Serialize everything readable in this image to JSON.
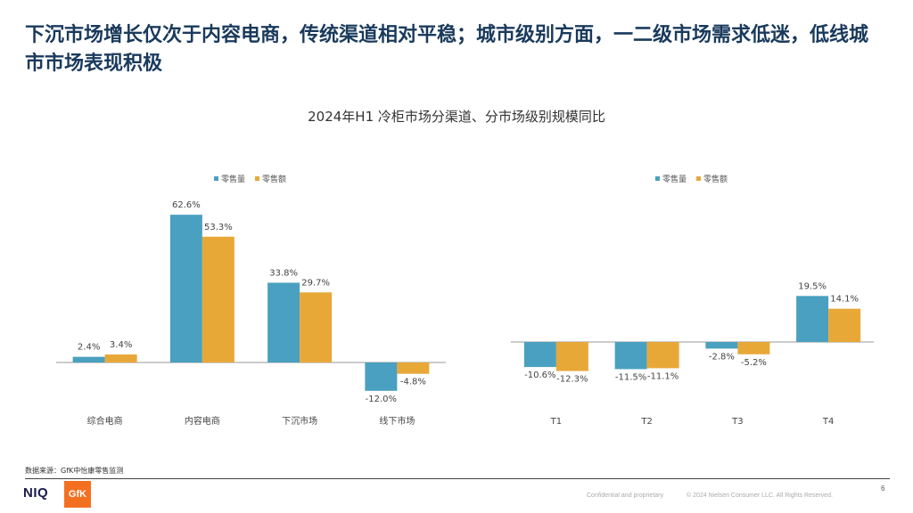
{
  "headline": "下沉市场增长仅次于内容电商，传统渠道相对平稳；城市级别方面，一二级市场需求低迷，低线城市市场表现积极",
  "chart_title": "2024年H1 冷柜市场分渠道、分市场级别规模同比",
  "colors": {
    "volume": "#4aa0c0",
    "value": "#e8a838",
    "axis": "#999999"
  },
  "chart_data": [
    {
      "type": "bar",
      "categories": [
        "综合电商",
        "内容电商",
        "下沉市场",
        "线下市场"
      ],
      "series": [
        {
          "name": "零售量",
          "values": [
            2.4,
            62.6,
            33.8,
            -12.0
          ],
          "labels": [
            "2.4%",
            "62.6%",
            "33.8%",
            "-12.0%"
          ]
        },
        {
          "name": "零售额",
          "values": [
            3.4,
            53.3,
            29.7,
            -4.8
          ],
          "labels": [
            "3.4%",
            "53.3%",
            "29.7%",
            "-4.8%"
          ]
        }
      ],
      "unit": "%",
      "legend": "top-center",
      "ylim": [
        -15,
        65
      ],
      "grid": false
    },
    {
      "type": "bar",
      "categories": [
        "T1",
        "T2",
        "T3",
        "T4"
      ],
      "series": [
        {
          "name": "零售量",
          "values": [
            -10.6,
            -11.5,
            -2.8,
            19.5
          ],
          "labels": [
            "-10.6%",
            "-11.5%",
            "-2.8%",
            "19.5%"
          ]
        },
        {
          "name": "零售额",
          "values": [
            -12.3,
            -11.1,
            -5.2,
            14.1
          ],
          "labels": [
            "-12.3%",
            "-11.1%",
            "-5.2%",
            "14.1%"
          ]
        }
      ],
      "unit": "%",
      "legend": "top-center",
      "ylim": [
        -15,
        65
      ],
      "grid": false
    }
  ],
  "source": "数据来源：GfK中怡康零售监测",
  "footer": {
    "logo_niq": "NIQ",
    "logo_gfk": "GfK",
    "confidential": "Confidential and proprietary",
    "copyright": "© 2024 Nielsen Consumer LLC. All Rights Reserved.",
    "page_number": "6"
  }
}
